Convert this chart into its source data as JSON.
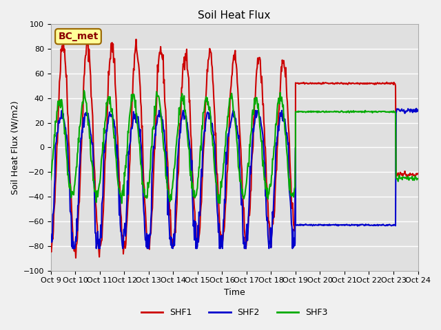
{
  "title": "Soil Heat Flux",
  "xlabel": "Time",
  "ylabel": "Soil Heat Flux (W/m2)",
  "ylim": [
    -100,
    100
  ],
  "yticks": [
    -100,
    -80,
    -60,
    -40,
    -20,
    0,
    20,
    40,
    60,
    80,
    100
  ],
  "xtick_labels": [
    "Oct 9",
    "Oct 10",
    "Oct 11",
    "Oct 12",
    "Oct 13",
    "Oct 14",
    "Oct 15",
    "Oct 16",
    "Oct 17",
    "Oct 18",
    "Oct 19",
    "Oct 20",
    "Oct 21",
    "Oct 22",
    "Oct 23",
    "Oct 24"
  ],
  "colors": {
    "SHF1": "#cc0000",
    "SHF2": "#0000cc",
    "SHF3": "#00aa00"
  },
  "annotation_text": "BC_met",
  "annotation_bg": "#ffff99",
  "annotation_border": "#996600",
  "bg_color": "#e0e0e0",
  "grid_color": "#ffffff",
  "line_width": 1.5
}
